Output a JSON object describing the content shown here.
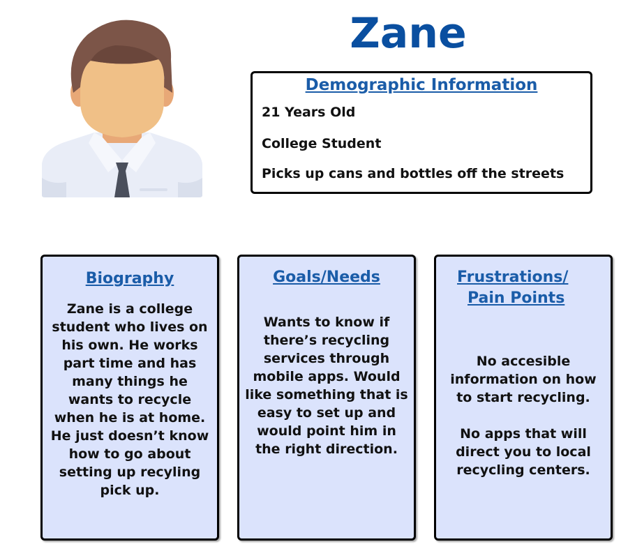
{
  "persona": {
    "name": "Zane"
  },
  "colors": {
    "title_blue": "#0a4fa0",
    "link_blue": "#1a5ca8",
    "card_fill": "#dbe3fc"
  },
  "icons": {
    "avatar": "male-avatar-icon"
  },
  "demographic": {
    "title": "Demographic Information",
    "items": [
      "21 Years Old",
      "College Student",
      "Picks up cans and bottles off the streets"
    ]
  },
  "cards": [
    {
      "title": "Biography",
      "paragraphs": [
        "Zane is a college student who lives on his own. He works part time and has many things he wants to recycle when he is at home. He just doesn’t know how to go about setting up recyling pick up."
      ]
    },
    {
      "title": "Goals/Needs",
      "paragraphs": [
        "Wants to know if there’s recycling services through mobile apps. Would like something that is easy to set up and would point him in the right direction."
      ]
    },
    {
      "title_line1": "Frustrations/",
      "title_line2": "Pain Points",
      "paragraphs": [
        "No accesible information on how to start recycling.",
        "No apps that will direct you to local recycling centers."
      ]
    }
  ]
}
